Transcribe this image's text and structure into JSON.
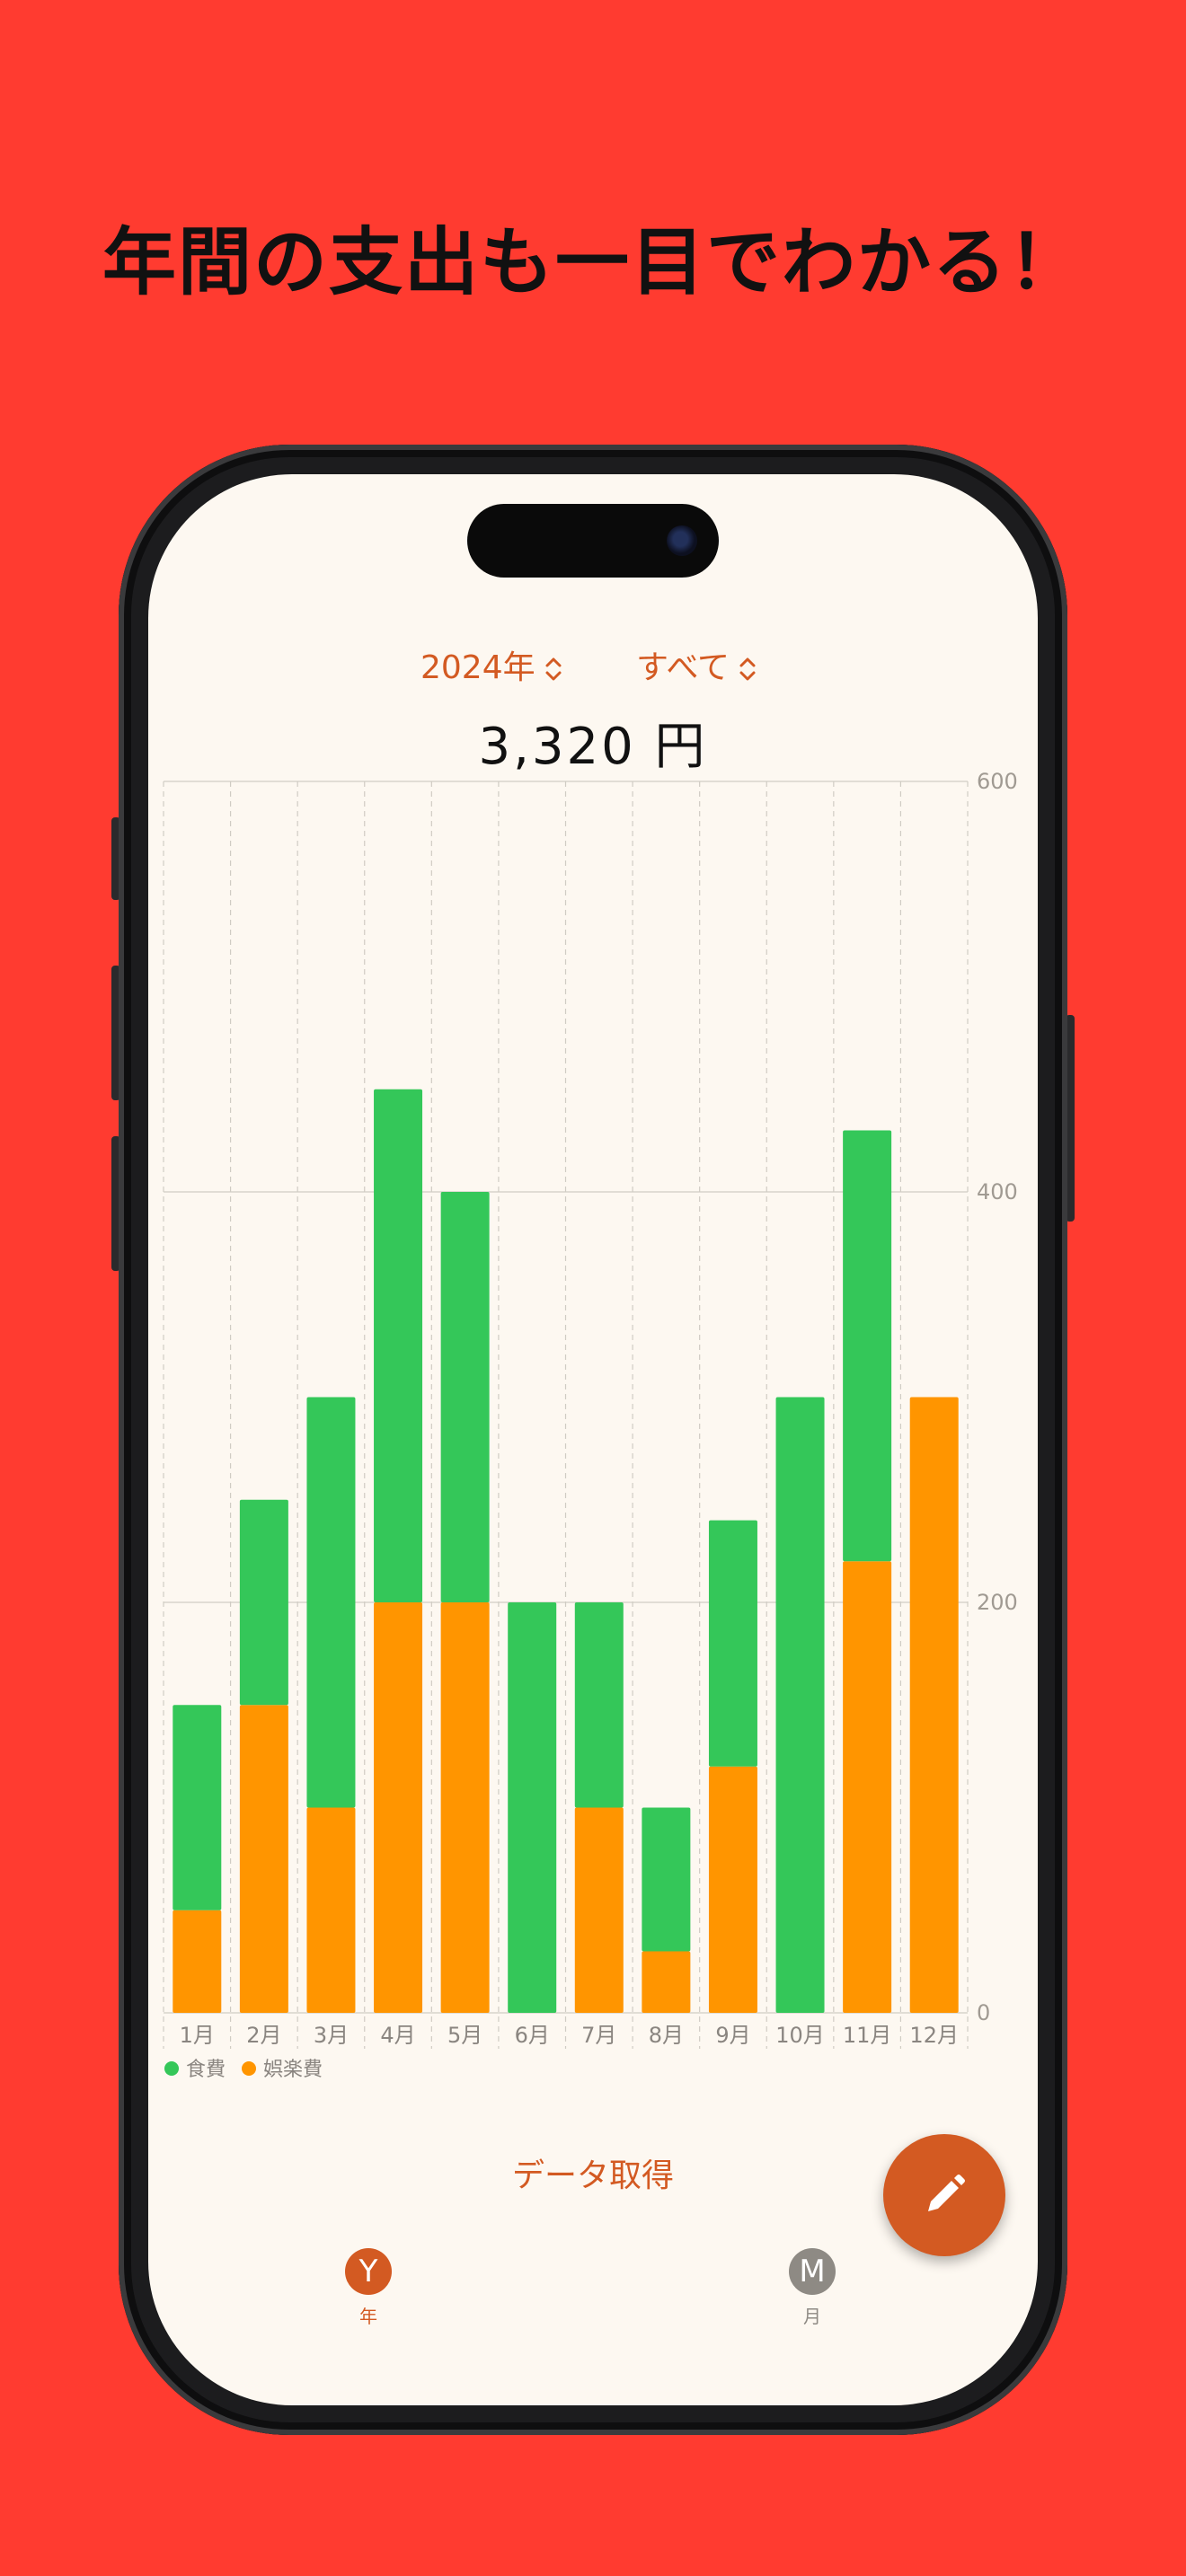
{
  "headline": "年間の支出も一目でわかる！",
  "header": {
    "year_selector_label": "2024年",
    "category_selector_label": "すべて",
    "total_amount": "3,320 円"
  },
  "chart_data": {
    "type": "bar",
    "stacked": true,
    "categories": [
      "1月",
      "2月",
      "3月",
      "4月",
      "5月",
      "6月",
      "7月",
      "8月",
      "9月",
      "10月",
      "11月",
      "12月"
    ],
    "series": [
      {
        "name": "娯楽費",
        "color": "#ff9500",
        "values": [
          50,
          150,
          100,
          200,
          200,
          0,
          100,
          30,
          120,
          0,
          220,
          300
        ]
      },
      {
        "name": "食費",
        "color": "#34c759",
        "values": [
          100,
          100,
          200,
          250,
          200,
          200,
          100,
          70,
          120,
          300,
          210,
          0
        ]
      }
    ],
    "legend_order": [
      "食費",
      "娯楽費"
    ],
    "y_ticks": [
      "0",
      "200",
      "400",
      "600"
    ],
    "ylim": [
      0,
      600
    ],
    "y_axis_position": "right",
    "grid": true,
    "legend_position": "bottom-left"
  },
  "actions": {
    "fetch_label": "データ取得",
    "fab_icon": "pencil-icon"
  },
  "tabs": [
    {
      "letter": "Y",
      "label": "年",
      "active": true,
      "color": "#d35a22"
    },
    {
      "letter": "M",
      "label": "月",
      "active": false,
      "color": "#8e8a84"
    }
  ],
  "colors": {
    "background": "#ff3b30",
    "accent": "#d35a22",
    "screen": "#fdf8f1",
    "food": "#34c759",
    "entertainment": "#ff9500"
  }
}
